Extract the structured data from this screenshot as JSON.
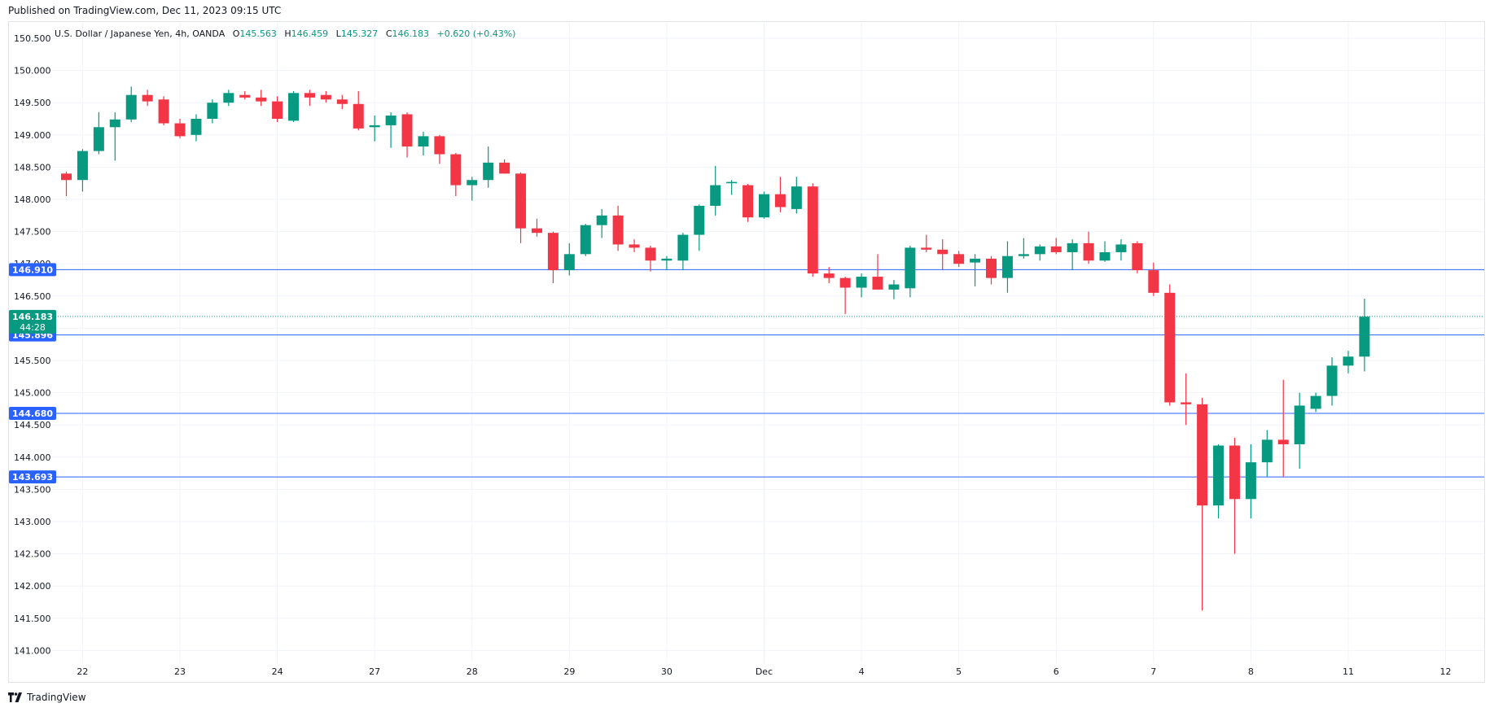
{
  "published": "Published on TradingView.com, Dec 11, 2023 09:15 UTC",
  "footer": {
    "brand": "TradingView"
  },
  "colors": {
    "up": "#089981",
    "down": "#f23645",
    "hline": "#2962ff",
    "grid": "#f0f3fa",
    "current": "#089981"
  },
  "chart_data": {
    "type": "candlestick",
    "symbol": "U.S. Dollar / Japanese Yen, 4h, OANDA",
    "ohlc_summary": {
      "O": "145.563",
      "H": "146.459",
      "L": "145.327",
      "C": "146.183",
      "change": "+0.620 (+0.43%)"
    },
    "ylim": [
      140.85,
      150.65
    ],
    "y_ticks": [
      "150.500",
      "150.000",
      "149.500",
      "149.000",
      "148.500",
      "148.000",
      "147.500",
      "147.000",
      "146.500",
      "146.000",
      "145.500",
      "145.000",
      "144.500",
      "144.000",
      "143.500",
      "143.000",
      "142.500",
      "142.000",
      "141.500",
      "141.000"
    ],
    "x_ticks": [
      {
        "label": "22",
        "bar": 1
      },
      {
        "label": "23",
        "bar": 7
      },
      {
        "label": "24",
        "bar": 13
      },
      {
        "label": "27",
        "bar": 19
      },
      {
        "label": "28",
        "bar": 25
      },
      {
        "label": "29",
        "bar": 31
      },
      {
        "label": "30",
        "bar": 37
      },
      {
        "label": "Dec",
        "bar": 43
      },
      {
        "label": "4",
        "bar": 49
      },
      {
        "label": "5",
        "bar": 55
      },
      {
        "label": "6",
        "bar": 61
      },
      {
        "label": "7",
        "bar": 67
      },
      {
        "label": "8",
        "bar": 73
      },
      {
        "label": "11",
        "bar": 79
      },
      {
        "label": "12",
        "bar": 85
      }
    ],
    "horizontal_lines": [
      146.91,
      145.896,
      144.68,
      143.693
    ],
    "current_price": {
      "value": 146.183,
      "label": "146.183",
      "countdown": "44:28"
    },
    "grid": true,
    "candles": [
      [
        148.4,
        148.43,
        148.05,
        148.3
      ],
      [
        148.3,
        148.78,
        148.12,
        148.75
      ],
      [
        148.75,
        149.35,
        148.7,
        149.12
      ],
      [
        149.12,
        149.35,
        148.6,
        149.24
      ],
      [
        149.24,
        149.75,
        149.2,
        149.62
      ],
      [
        149.62,
        149.7,
        149.45,
        149.52
      ],
      [
        149.55,
        149.6,
        149.15,
        149.18
      ],
      [
        149.18,
        149.25,
        148.95,
        148.98
      ],
      [
        149.0,
        149.32,
        148.9,
        149.25
      ],
      [
        149.25,
        149.55,
        149.18,
        149.5
      ],
      [
        149.5,
        149.7,
        149.45,
        149.65
      ],
      [
        149.62,
        149.68,
        149.55,
        149.58
      ],
      [
        149.58,
        149.7,
        149.45,
        149.52
      ],
      [
        149.52,
        149.6,
        149.2,
        149.25
      ],
      [
        149.22,
        149.68,
        149.2,
        149.65
      ],
      [
        149.65,
        149.7,
        149.45,
        149.58
      ],
      [
        149.62,
        149.68,
        149.5,
        149.55
      ],
      [
        149.55,
        149.62,
        149.4,
        149.48
      ],
      [
        149.48,
        149.68,
        149.07,
        149.1
      ],
      [
        149.12,
        149.3,
        148.9,
        149.15
      ],
      [
        149.15,
        149.35,
        148.8,
        149.3
      ],
      [
        149.32,
        149.35,
        148.65,
        148.82
      ],
      [
        148.82,
        149.05,
        148.68,
        148.98
      ],
      [
        148.98,
        149.0,
        148.55,
        148.7
      ],
      [
        148.7,
        148.72,
        148.05,
        148.22
      ],
      [
        148.22,
        148.35,
        147.98,
        148.3
      ],
      [
        148.3,
        148.82,
        148.18,
        148.57
      ],
      [
        148.57,
        148.62,
        148.4,
        148.4
      ],
      [
        148.4,
        148.42,
        147.32,
        147.55
      ],
      [
        147.55,
        147.7,
        147.42,
        147.48
      ],
      [
        147.48,
        147.5,
        146.7,
        146.9
      ],
      [
        146.9,
        147.32,
        146.82,
        147.15
      ],
      [
        147.15,
        147.62,
        147.12,
        147.6
      ],
      [
        147.6,
        147.85,
        147.4,
        147.75
      ],
      [
        147.75,
        147.9,
        147.2,
        147.3
      ],
      [
        147.3,
        147.38,
        147.18,
        147.25
      ],
      [
        147.25,
        147.28,
        146.88,
        147.05
      ],
      [
        147.05,
        147.12,
        146.9,
        147.08
      ],
      [
        147.05,
        147.48,
        146.9,
        147.45
      ],
      [
        147.45,
        147.92,
        147.2,
        147.9
      ],
      [
        147.9,
        148.52,
        147.75,
        148.22
      ],
      [
        148.25,
        148.3,
        148.07,
        148.27
      ],
      [
        148.22,
        148.24,
        147.65,
        147.72
      ],
      [
        147.72,
        148.12,
        147.7,
        148.08
      ],
      [
        148.08,
        148.35,
        147.8,
        147.88
      ],
      [
        147.85,
        148.35,
        147.78,
        148.2
      ],
      [
        148.2,
        148.25,
        146.8,
        146.85
      ],
      [
        146.85,
        146.95,
        146.7,
        146.78
      ],
      [
        146.78,
        146.8,
        146.22,
        146.63
      ],
      [
        146.63,
        146.85,
        146.48,
        146.8
      ],
      [
        146.8,
        147.15,
        146.6,
        146.6
      ],
      [
        146.6,
        146.75,
        146.45,
        146.68
      ],
      [
        146.62,
        147.28,
        146.48,
        147.25
      ],
      [
        147.25,
        147.45,
        147.18,
        147.22
      ],
      [
        147.22,
        147.38,
        146.9,
        147.15
      ],
      [
        147.15,
        147.2,
        146.95,
        147.0
      ],
      [
        147.02,
        147.15,
        146.65,
        147.08
      ],
      [
        147.08,
        147.12,
        146.68,
        146.78
      ],
      [
        146.78,
        147.35,
        146.55,
        147.12
      ],
      [
        147.12,
        147.4,
        147.08,
        147.15
      ],
      [
        147.15,
        147.3,
        147.05,
        147.27
      ],
      [
        147.27,
        147.4,
        147.15,
        147.18
      ],
      [
        147.18,
        147.38,
        146.9,
        147.32
      ],
      [
        147.32,
        147.5,
        147.0,
        147.05
      ],
      [
        147.05,
        147.35,
        147.03,
        147.18
      ],
      [
        147.18,
        147.38,
        147.05,
        147.3
      ],
      [
        147.32,
        147.35,
        146.85,
        146.9
      ],
      [
        146.9,
        147.02,
        146.5,
        146.55
      ],
      [
        146.55,
        146.68,
        144.8,
        144.85
      ],
      [
        144.85,
        145.3,
        144.5,
        144.82
      ],
      [
        144.82,
        144.92,
        141.62,
        143.25
      ],
      [
        143.25,
        144.2,
        143.05,
        144.18
      ],
      [
        144.18,
        144.3,
        142.5,
        143.35
      ],
      [
        143.35,
        144.2,
        143.05,
        143.92
      ],
      [
        143.92,
        144.42,
        143.7,
        144.27
      ],
      [
        144.27,
        145.2,
        143.7,
        144.2
      ],
      [
        144.2,
        145.0,
        143.82,
        144.8
      ],
      [
        144.75,
        145.0,
        144.7,
        144.95
      ],
      [
        144.95,
        145.55,
        144.8,
        145.42
      ],
      [
        145.42,
        145.65,
        145.3,
        145.56
      ],
      [
        145.56,
        146.46,
        145.33,
        146.18
      ]
    ]
  }
}
